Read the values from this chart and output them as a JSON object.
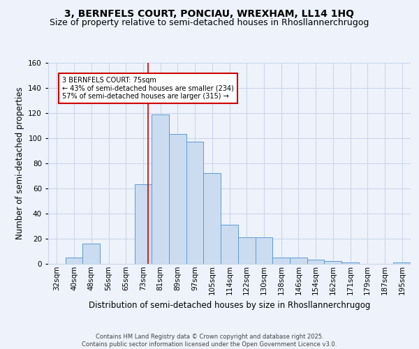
{
  "title1": "3, BERNFELS COURT, PONCIAU, WREXHAM, LL14 1HQ",
  "title2": "Size of property relative to semi-detached houses in Rhosllannerchrugog",
  "xlabel": "Distribution of semi-detached houses by size in Rhosllannerchrugog",
  "ylabel": "Number of semi-detached properties",
  "categories": [
    "32sqm",
    "40sqm",
    "48sqm",
    "56sqm",
    "65sqm",
    "73sqm",
    "81sqm",
    "89sqm",
    "97sqm",
    "105sqm",
    "114sqm",
    "122sqm",
    "130sqm",
    "138sqm",
    "146sqm",
    "154sqm",
    "162sqm",
    "171sqm",
    "179sqm",
    "187sqm",
    "195sqm"
  ],
  "values": [
    0,
    5,
    16,
    0,
    0,
    63,
    119,
    103,
    97,
    72,
    31,
    21,
    21,
    5,
    5,
    3,
    2,
    1,
    0,
    0,
    1
  ],
  "bar_color": "#ccdcf0",
  "bar_edge_color": "#5b9bd5",
  "annotation_text": "3 BERNFELS COURT: 75sqm\n← 43% of semi-detached houses are smaller (234)\n57% of semi-detached houses are larger (315) →",
  "annotation_box_color": "#ffffff",
  "annotation_box_edge": "#cc0000",
  "line_color": "#cc0000",
  "footer": "Contains HM Land Registry data © Crown copyright and database right 2025.\nContains public sector information licensed under the Open Government Licence v3.0.",
  "ylim": [
    0,
    160
  ],
  "background_color": "#edf2fb",
  "plot_background": "#edf2fb",
  "grid_color": "#c8d4e8",
  "title_fontsize": 10,
  "subtitle_fontsize": 9,
  "tick_fontsize": 7.5,
  "ylabel_fontsize": 8.5,
  "xlabel_fontsize": 8.5,
  "footer_fontsize": 6,
  "line_x_index": 5.3
}
